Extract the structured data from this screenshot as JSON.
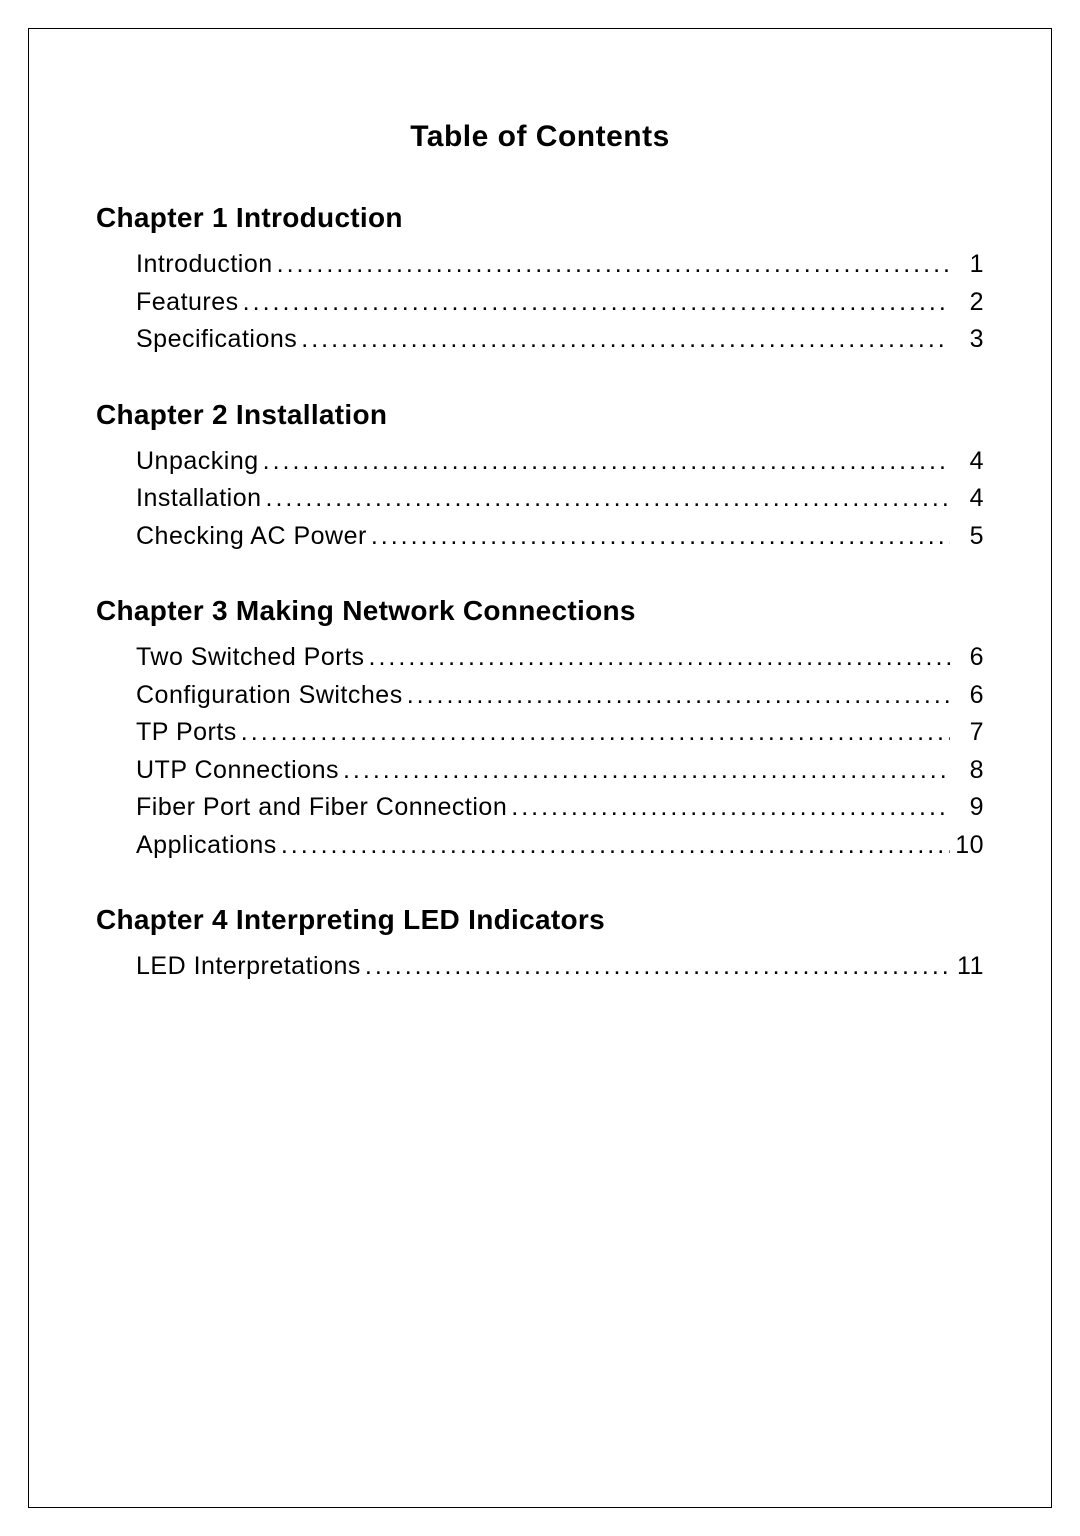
{
  "title": "Table of Contents",
  "body_fontsize": 25,
  "heading_fontsize": 28,
  "title_fontsize": 30,
  "text_color": "#000000",
  "background_color": "#ffffff",
  "chapters": [
    {
      "heading": "Chapter 1 Introduction",
      "entries": [
        {
          "label": "Introduction",
          "page": "1"
        },
        {
          "label": "Features",
          "page": "2"
        },
        {
          "label": "Specifications",
          "page": "3"
        }
      ]
    },
    {
      "heading": "Chapter 2 Installation",
      "entries": [
        {
          "label": "Unpacking",
          "page": "4"
        },
        {
          "label": "Installation",
          "page": "4"
        },
        {
          "label": "Checking AC Power",
          "page": "5"
        }
      ]
    },
    {
      "heading": "Chapter 3 Making Network Connections",
      "entries": [
        {
          "label": "Two Switched Ports",
          "page": "6"
        },
        {
          "label": "Configuration Switches",
          "page": "6"
        },
        {
          "label": "TP Ports",
          "page": "7"
        },
        {
          "label": "UTP Connections",
          "page": "8"
        },
        {
          "label": "Fiber Port and Fiber Connection",
          "page": "9"
        },
        {
          "label": "Applications",
          "page": "10"
        }
      ]
    },
    {
      "heading": "Chapter 4 Interpreting LED Indicators",
      "entries": [
        {
          "label": "LED Interpretations",
          "page": "11"
        }
      ]
    }
  ]
}
